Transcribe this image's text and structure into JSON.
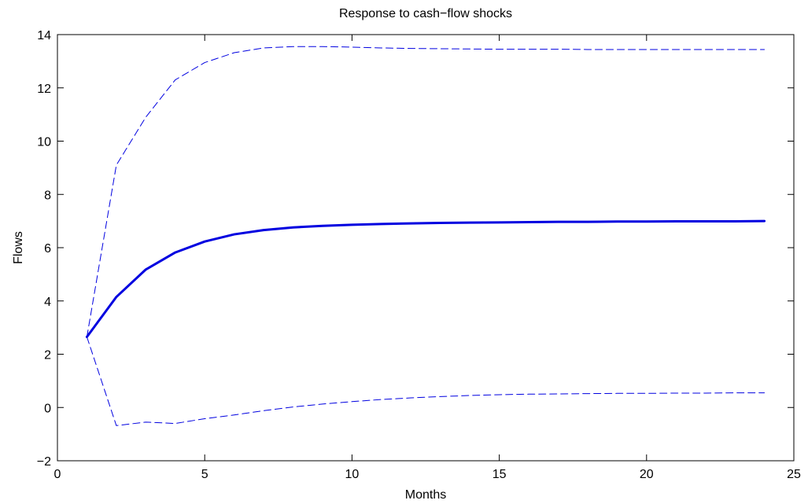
{
  "chart_data": {
    "type": "line",
    "title": "Response to cash−flow shocks",
    "xlabel": "Months",
    "ylabel": "Flows",
    "xlim": [
      0,
      25
    ],
    "ylim": [
      -2,
      14
    ],
    "xticks": [
      0,
      5,
      10,
      15,
      20,
      25
    ],
    "yticks": [
      -2,
      0,
      2,
      4,
      6,
      8,
      10,
      12,
      14
    ],
    "xtick_labels": [
      "0",
      "5",
      "10",
      "15",
      "20",
      "25"
    ],
    "ytick_labels": [
      "−2",
      "0",
      "2",
      "4",
      "6",
      "8",
      "10",
      "12",
      "14"
    ],
    "grid": false,
    "x": [
      1,
      2,
      3,
      4,
      5,
      6,
      7,
      8,
      9,
      10,
      11,
      12,
      13,
      14,
      15,
      16,
      17,
      18,
      19,
      20,
      21,
      22,
      23,
      24
    ],
    "series": [
      {
        "role": "response",
        "style": "solid",
        "color": "#0000e0",
        "values": [
          2.65,
          4.15,
          5.18,
          5.82,
          6.23,
          6.5,
          6.66,
          6.76,
          6.82,
          6.86,
          6.89,
          6.91,
          6.93,
          6.94,
          6.95,
          6.96,
          6.97,
          6.97,
          6.98,
          6.98,
          6.99,
          6.99,
          6.99,
          7.0
        ]
      },
      {
        "role": "upper-band",
        "style": "dashed",
        "color": "#0000e0",
        "values": [
          2.65,
          9.1,
          10.9,
          12.3,
          12.95,
          13.32,
          13.5,
          13.55,
          13.55,
          13.53,
          13.5,
          13.48,
          13.47,
          13.46,
          13.45,
          13.45,
          13.45,
          13.44,
          13.44,
          13.44,
          13.44,
          13.44,
          13.44,
          13.44
        ]
      },
      {
        "role": "lower-band",
        "style": "dashed",
        "color": "#0000e0",
        "values": [
          2.65,
          -0.68,
          -0.55,
          -0.6,
          -0.42,
          -0.28,
          -0.12,
          0.02,
          0.13,
          0.22,
          0.3,
          0.36,
          0.41,
          0.45,
          0.48,
          0.5,
          0.51,
          0.52,
          0.53,
          0.53,
          0.54,
          0.54,
          0.55,
          0.55
        ]
      }
    ]
  }
}
